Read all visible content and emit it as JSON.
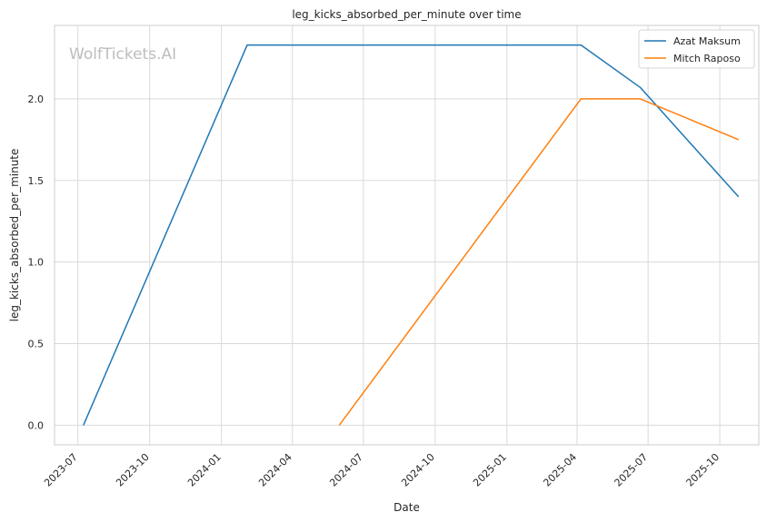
{
  "chart_data": {
    "type": "line",
    "title": "leg_kicks_absorbed_per_minute over time",
    "xlabel": "Date",
    "ylabel": "leg_kicks_absorbed_per_minute",
    "watermark": "WolfTickets.AI",
    "x_ticks": [
      "2023-07",
      "2023-10",
      "2024-01",
      "2024-04",
      "2024-07",
      "2024-10",
      "2025-01",
      "2025-04",
      "2025-07",
      "2025-10"
    ],
    "y_ticks": [
      "0.0",
      "0.5",
      "1.0",
      "1.5",
      "2.0"
    ],
    "xlim": [
      "2023-06-01",
      "2025-11-20"
    ],
    "ylim": [
      -0.12,
      2.45
    ],
    "grid": true,
    "legend": "top-right",
    "series": [
      {
        "name": "Azat Maksum",
        "color": "#1f77b4",
        "points": [
          {
            "x": "2023-07-08",
            "y": 0.0
          },
          {
            "x": "2024-02-03",
            "y": 2.33
          },
          {
            "x": "2025-04-06",
            "y": 2.33
          },
          {
            "x": "2025-06-21",
            "y": 2.07
          },
          {
            "x": "2025-10-25",
            "y": 1.4
          }
        ]
      },
      {
        "name": "Mitch Raposo",
        "color": "#ff7f0e",
        "points": [
          {
            "x": "2024-05-31",
            "y": 0.0
          },
          {
            "x": "2025-04-06",
            "y": 2.0
          },
          {
            "x": "2025-06-21",
            "y": 2.0
          },
          {
            "x": "2025-10-25",
            "y": 1.75
          }
        ]
      }
    ]
  }
}
